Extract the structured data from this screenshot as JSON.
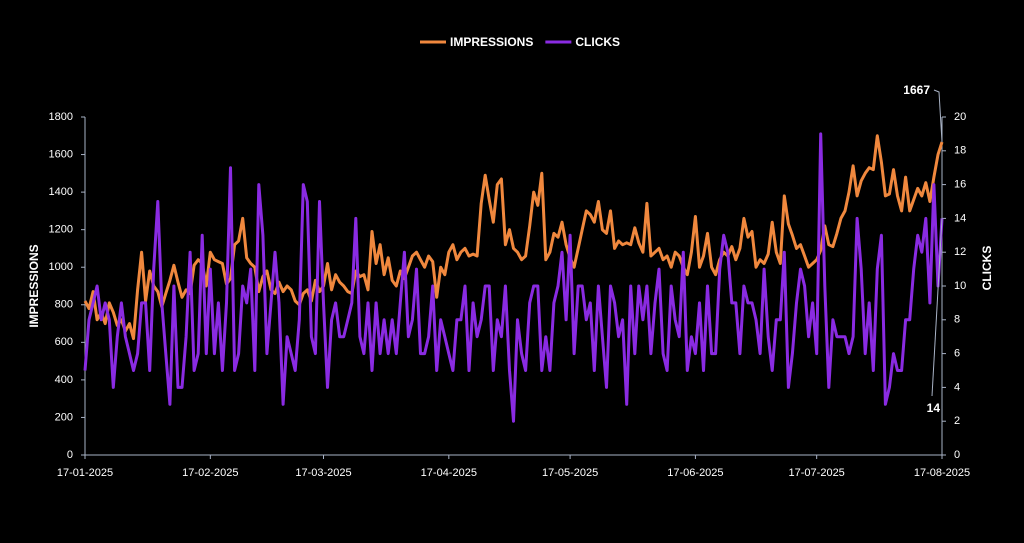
{
  "chart_data": {
    "type": "line",
    "y_label": "IMPRESSIONS",
    "y2_label": "CLICKS",
    "x": [
      "17-01-2025",
      "18-01-2025",
      "19-01-2025",
      "20-01-2025",
      "21-01-2025",
      "22-01-2025",
      "23-01-2025",
      "24-01-2025",
      "25-01-2025",
      "26-01-2025",
      "27-01-2025",
      "28-01-2025",
      "29-01-2025",
      "30-01-2025",
      "31-01-2025",
      "01-02-2025",
      "02-02-2025",
      "03-02-2025",
      "04-02-2025",
      "05-02-2025",
      "06-02-2025",
      "07-02-2025",
      "08-02-2025",
      "09-02-2025",
      "10-02-2025",
      "11-02-2025",
      "12-02-2025",
      "13-02-2025",
      "14-02-2025",
      "15-02-2025",
      "16-02-2025",
      "17-02-2025",
      "18-02-2025",
      "19-02-2025",
      "20-02-2025",
      "21-02-2025",
      "22-02-2025",
      "23-02-2025",
      "24-02-2025",
      "25-02-2025",
      "26-02-2025",
      "27-02-2025",
      "28-02-2025",
      "01-03-2025",
      "02-03-2025",
      "03-03-2025",
      "04-03-2025",
      "05-03-2025",
      "06-03-2025",
      "07-03-2025",
      "08-03-2025",
      "09-03-2025",
      "10-03-2025",
      "11-03-2025",
      "12-03-2025",
      "13-03-2025",
      "14-03-2025",
      "15-03-2025",
      "16-03-2025",
      "17-03-2025",
      "18-03-2025",
      "19-03-2025",
      "20-03-2025",
      "21-03-2025",
      "22-03-2025",
      "23-03-2025",
      "24-03-2025",
      "25-03-2025",
      "26-03-2025",
      "27-03-2025",
      "28-03-2025",
      "29-03-2025",
      "30-03-2025",
      "31-03-2025",
      "01-04-2025",
      "02-04-2025",
      "03-04-2025",
      "04-04-2025",
      "05-04-2025",
      "06-04-2025",
      "07-04-2025",
      "08-04-2025",
      "09-04-2025",
      "10-04-2025",
      "11-04-2025",
      "12-04-2025",
      "13-04-2025",
      "14-04-2025",
      "15-04-2025",
      "16-04-2025",
      "17-04-2025",
      "18-04-2025",
      "19-04-2025",
      "20-04-2025",
      "21-04-2025",
      "22-04-2025",
      "23-04-2025",
      "24-04-2025",
      "25-04-2025",
      "26-04-2025",
      "27-04-2025",
      "28-04-2025",
      "29-04-2025",
      "30-04-2025",
      "01-05-2025",
      "02-05-2025",
      "03-05-2025",
      "04-05-2025",
      "05-05-2025",
      "06-05-2025",
      "07-05-2025",
      "08-05-2025",
      "09-05-2025",
      "10-05-2025",
      "11-05-2025",
      "12-05-2025",
      "13-05-2025",
      "14-05-2025",
      "15-05-2025",
      "16-05-2025",
      "17-05-2025",
      "18-05-2025",
      "19-05-2025",
      "20-05-2025",
      "21-05-2025",
      "22-05-2025",
      "23-05-2025",
      "24-05-2025",
      "25-05-2025",
      "26-05-2025",
      "27-05-2025",
      "28-05-2025",
      "29-05-2025",
      "30-05-2025",
      "31-05-2025",
      "01-06-2025",
      "02-06-2025",
      "03-06-2025",
      "04-06-2025",
      "05-06-2025",
      "06-06-2025",
      "07-06-2025",
      "08-06-2025",
      "09-06-2025",
      "10-06-2025",
      "11-06-2025",
      "12-06-2025",
      "13-06-2025",
      "14-06-2025",
      "15-06-2025",
      "16-06-2025",
      "17-06-2025",
      "18-06-2025",
      "19-06-2025",
      "20-06-2025",
      "21-06-2025",
      "22-06-2025",
      "23-06-2025",
      "24-06-2025",
      "25-06-2025",
      "26-06-2025",
      "27-06-2025",
      "28-06-2025",
      "29-06-2025",
      "30-06-2025",
      "01-07-2025",
      "02-07-2025",
      "03-07-2025",
      "04-07-2025",
      "05-07-2025",
      "06-07-2025",
      "07-07-2025",
      "08-07-2025",
      "09-07-2025",
      "10-07-2025",
      "11-07-2025",
      "12-07-2025",
      "13-07-2025",
      "14-07-2025",
      "15-07-2025",
      "16-07-2025",
      "17-07-2025",
      "18-07-2025",
      "19-07-2025",
      "20-07-2025",
      "21-07-2025",
      "22-07-2025",
      "23-07-2025",
      "24-07-2025",
      "25-07-2025",
      "26-07-2025",
      "27-07-2025",
      "28-07-2025",
      "29-07-2025",
      "30-07-2025",
      "31-07-2025",
      "01-08-2025",
      "02-08-2025",
      "03-08-2025",
      "04-08-2025",
      "05-08-2025",
      "06-08-2025",
      "07-08-2025",
      "08-08-2025",
      "09-08-2025",
      "10-08-2025",
      "11-08-2025",
      "12-08-2025",
      "13-08-2025",
      "14-08-2025",
      "15-08-2025",
      "16-08-2025",
      "17-08-2025"
    ],
    "series": [
      {
        "name": "IMPRESSIONS",
        "color": "#f0883e",
        "values": [
          820,
          780,
          870,
          720,
          760,
          700,
          810,
          760,
          690,
          720,
          660,
          700,
          620,
          880,
          1080,
          820,
          980,
          900,
          870,
          790,
          860,
          930,
          1010,
          920,
          840,
          880,
          860,
          1010,
          1040,
          1020,
          900,
          1080,
          1040,
          1030,
          1020,
          910,
          940,
          1120,
          1140,
          1260,
          1050,
          1020,
          1000,
          870,
          950,
          980,
          880,
          860,
          920,
          870,
          900,
          880,
          820,
          800,
          860,
          880,
          820,
          930,
          870,
          900,
          1020,
          880,
          960,
          920,
          900,
          870,
          860,
          980,
          950,
          960,
          880,
          1190,
          1020,
          1120,
          960,
          1050,
          930,
          900,
          980,
          940,
          1000,
          1060,
          1080,
          1040,
          1000,
          1060,
          1030,
          840,
          1000,
          960,
          1080,
          1120,
          1040,
          1080,
          1100,
          1060,
          1070,
          1060,
          1340,
          1490,
          1360,
          1240,
          1440,
          1470,
          1120,
          1200,
          1100,
          1080,
          1040,
          1060,
          1220,
          1400,
          1330,
          1500,
          1040,
          1080,
          1180,
          1160,
          1240,
          1120,
          1050,
          1000,
          1100,
          1200,
          1300,
          1280,
          1240,
          1350,
          1200,
          1180,
          1300,
          1100,
          1140,
          1120,
          1130,
          1120,
          1210,
          1130,
          1080,
          1340,
          1060,
          1080,
          1100,
          1040,
          1060,
          1000,
          1080,
          1060,
          1000,
          960,
          1080,
          1270,
          1000,
          1060,
          1180,
          1000,
          960,
          1040,
          1080,
          1060,
          1110,
          1040,
          1100,
          1260,
          1160,
          1190,
          1000,
          1040,
          1020,
          1070,
          1240,
          1080,
          1020,
          1380,
          1230,
          1170,
          1100,
          1120,
          1060,
          1000,
          1020,
          1040,
          1090,
          1220,
          1120,
          1110,
          1180,
          1260,
          1300,
          1400,
          1540,
          1380,
          1460,
          1500,
          1530,
          1520,
          1700,
          1560,
          1380,
          1390,
          1520,
          1380,
          1300,
          1480,
          1300,
          1360,
          1420,
          1380,
          1450,
          1350,
          1480,
          1600,
          1667
        ]
      },
      {
        "name": "CLICKS",
        "color": "#8a2be2",
        "axis": "y2",
        "values": [
          5,
          8,
          9,
          10,
          8,
          9,
          8,
          4,
          7,
          9,
          7,
          6,
          5,
          6,
          9,
          9,
          5,
          11,
          15,
          9,
          6,
          3,
          10,
          4,
          4,
          7,
          12,
          5,
          6,
          13,
          6,
          11,
          6,
          9,
          5,
          9,
          17,
          5,
          6,
          10,
          9,
          11,
          5,
          16,
          13,
          6,
          9,
          12,
          9,
          3,
          7,
          6,
          5,
          8,
          16,
          15,
          7,
          6,
          15,
          9,
          4,
          8,
          9,
          7,
          7,
          8,
          9,
          14,
          7,
          6,
          9,
          5,
          9,
          6,
          8,
          6,
          8,
          6,
          9,
          12,
          7,
          8,
          11,
          6,
          6,
          7,
          10,
          5,
          8,
          7,
          6,
          5,
          8,
          8,
          10,
          5,
          9,
          7,
          8,
          10,
          10,
          5,
          8,
          7,
          10,
          5,
          2,
          8,
          6,
          5,
          9,
          10,
          10,
          5,
          7,
          5,
          9,
          10,
          12,
          8,
          13,
          6,
          10,
          10,
          8,
          9,
          5,
          10,
          7,
          4,
          10,
          9,
          7,
          8,
          3,
          10,
          6,
          10,
          8,
          10,
          6,
          9,
          11,
          6,
          5,
          10,
          8,
          7,
          12,
          5,
          7,
          6,
          9,
          5,
          10,
          6,
          6,
          11,
          13,
          12,
          9,
          9,
          6,
          10,
          9,
          9,
          8,
          6,
          11,
          7,
          5,
          8,
          8,
          12,
          4,
          6,
          9,
          11,
          10,
          7,
          9,
          6,
          19,
          10,
          4,
          8,
          7,
          7,
          7,
          6,
          7,
          14,
          11,
          6,
          9,
          5,
          11,
          13,
          3,
          4,
          6,
          5,
          5,
          8,
          8,
          11,
          13,
          12,
          14,
          9,
          16,
          10,
          14
        ]
      }
    ],
    "xticks": [
      "17-01-2025",
      "17-02-2025",
      "17-03-2025",
      "17-04-2025",
      "17-05-2025",
      "17-06-2025",
      "17-07-2025",
      "17-08-2025"
    ],
    "ylim": [
      0,
      1800
    ],
    "yticks": [
      0,
      200,
      400,
      600,
      800,
      1000,
      1200,
      1400,
      1600,
      1800
    ],
    "y2lim": [
      0,
      20
    ],
    "y2ticks": [
      0,
      2,
      4,
      6,
      8,
      10,
      12,
      14,
      16,
      18,
      20
    ],
    "legend": "top"
  }
}
